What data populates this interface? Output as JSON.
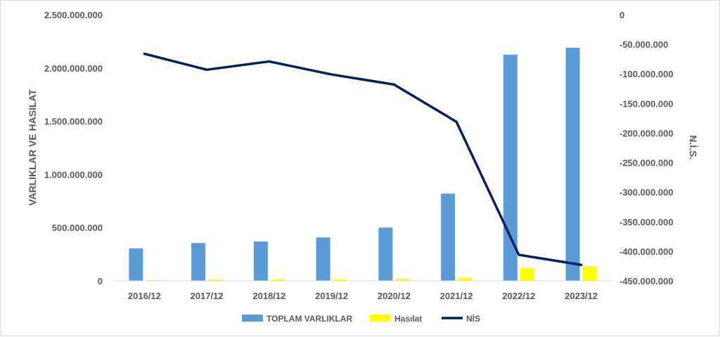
{
  "chart_data": {
    "type": "bar",
    "categories": [
      "2016/12",
      "2017/12",
      "2018/12",
      "2019/12",
      "2020/12",
      "2021/12",
      "2022/12",
      "2023/12"
    ],
    "series": [
      {
        "name": "TOPLAM VARLIKLAR",
        "kind": "bar",
        "axis": "left",
        "color": "#5b9bd5",
        "values": [
          305000000,
          355000000,
          370000000,
          408000000,
          500000000,
          820000000,
          2125000000,
          2190000000
        ]
      },
      {
        "name": "Hasılat",
        "kind": "bar",
        "axis": "left",
        "color": "#ffff00",
        "values": [
          8000000,
          12000000,
          13000000,
          15000000,
          20000000,
          30000000,
          120000000,
          138000000
        ]
      },
      {
        "name": "NİS",
        "kind": "line",
        "axis": "right",
        "color": "#002060",
        "values": [
          -66000000,
          -93000000,
          -79000000,
          -101000000,
          -118000000,
          -181000000,
          -406000000,
          -423000000
        ]
      }
    ],
    "y_left": {
      "label": "VARLIKLAR VE HASILAT",
      "min": 0,
      "max": 2500000000,
      "ticks": [
        "0",
        "500.000.000",
        "1.000.000.000",
        "1.500.000.000",
        "2.000.000.000",
        "2.500.000.000"
      ]
    },
    "y_right": {
      "label": "N.İ.S.",
      "min": -450000000,
      "max": 0,
      "ticks": [
        "0",
        "-50.000.000",
        "-100.000.000",
        "-150.000.000",
        "-200.000.000",
        "-250.000.000",
        "-300.000.000",
        "-350.000.000",
        "-400.000.000",
        "-450.000.000"
      ]
    },
    "legend": {
      "position": "bottom",
      "items": [
        "TOPLAM VARLIKLAR",
        "Hasılat",
        "NİS"
      ]
    },
    "grid": false
  }
}
